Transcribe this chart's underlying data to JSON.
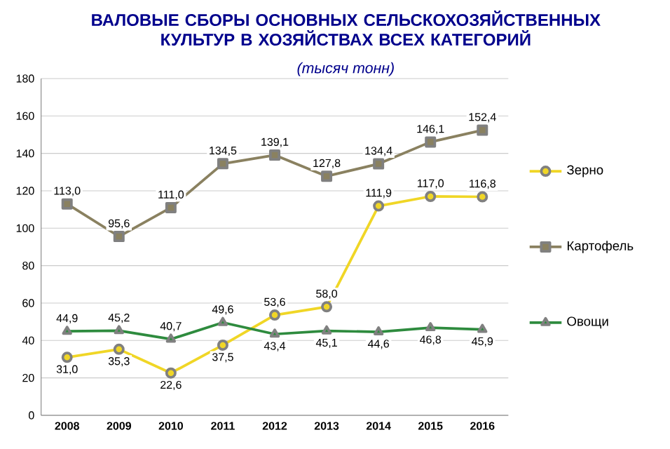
{
  "chart_data": {
    "type": "line",
    "title": "ВАЛОВЫЕ СБОРЫ ОСНОВНЫХ СЕЛЬСКОХОЗЯЙСТВЕННЫХ КУЛЬТУР В ХОЗЯЙСТВАХ ВСЕХ КАТЕГОРИЙ",
    "subtitle": "(тысяч тонн)",
    "categories": [
      "2008",
      "2009",
      "2010",
      "2011",
      "2012",
      "2013",
      "2014",
      "2015",
      "2016"
    ],
    "ylim": [
      0,
      180
    ],
    "yticks": [
      0,
      20,
      40,
      60,
      80,
      100,
      120,
      140,
      160,
      180
    ],
    "grid": "y",
    "legend": "right",
    "series": [
      {
        "name": "Зерно",
        "color": "#f0d626",
        "marker": "circle",
        "values": [
          31.0,
          35.3,
          22.6,
          37.5,
          53.6,
          58.0,
          111.9,
          117.0,
          116.8
        ],
        "value_labels": [
          "31,0",
          "35,3",
          "22,6",
          "37,5",
          "53,6",
          "58,0",
          "111,9",
          "117,0",
          "116,8"
        ]
      },
      {
        "name": "Картофель",
        "color": "#8a8160",
        "marker": "square",
        "values": [
          113.0,
          95.6,
          111.0,
          134.5,
          139.1,
          127.8,
          134.4,
          146.1,
          152.4
        ],
        "value_labels": [
          "113,0",
          "95,6",
          "111,0",
          "134,5",
          "139,1",
          "127,8",
          "134,4",
          "146,1",
          "152,4"
        ]
      },
      {
        "name": "Овощи",
        "color": "#2e8b3e",
        "marker": "triangle",
        "values": [
          44.9,
          45.2,
          40.7,
          49.6,
          43.4,
          45.1,
          44.6,
          46.8,
          45.9
        ],
        "value_labels": [
          "44,9",
          "45,2",
          "40,7",
          "49,6",
          "43,4",
          "45,1",
          "44,6",
          "46,8",
          "45,9"
        ]
      }
    ]
  }
}
